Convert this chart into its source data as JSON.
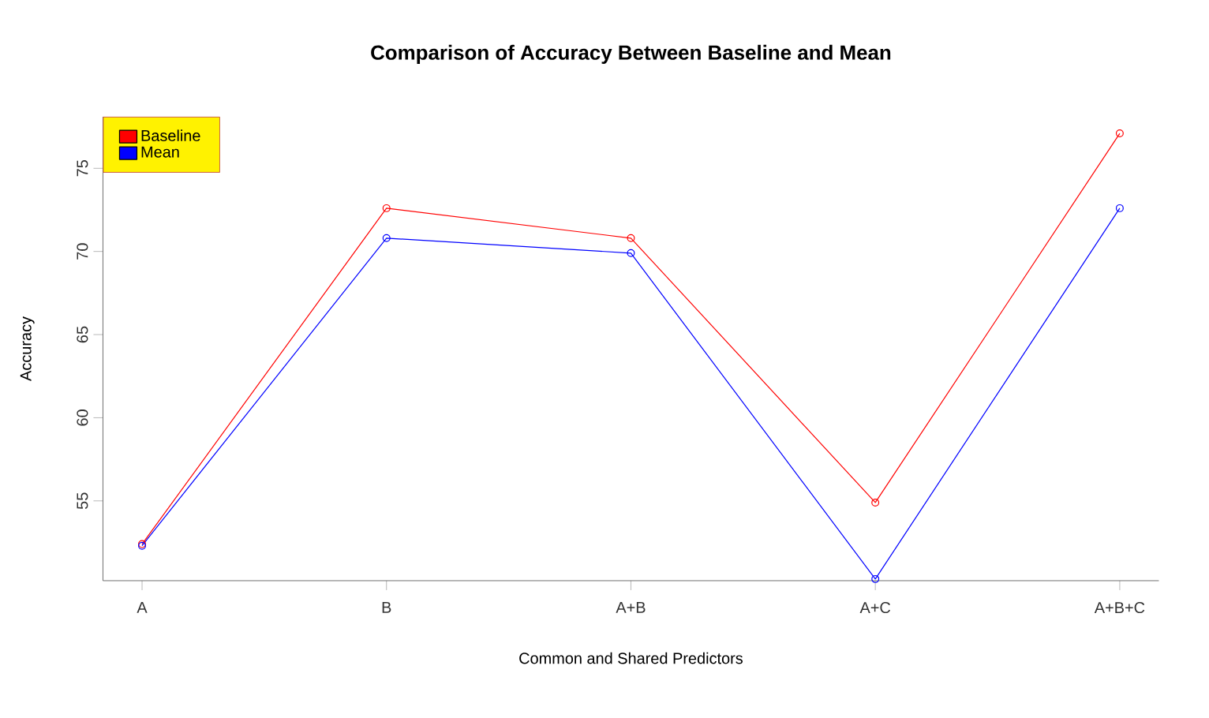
{
  "chart_data": {
    "type": "line",
    "title": "Comparison of Accuracy Between Baseline and Mean",
    "xlabel": "Common and Shared Predictors",
    "ylabel": "Accuracy",
    "categories": [
      "A",
      "B",
      "A+B",
      "A+C",
      "A+B+C"
    ],
    "series": [
      {
        "name": "Baseline",
        "color": "#ff0000",
        "values": [
          52.4,
          72.6,
          70.8,
          54.9,
          77.1
        ]
      },
      {
        "name": "Mean",
        "color": "#0000ff",
        "values": [
          52.3,
          70.8,
          69.9,
          50.3,
          72.6
        ]
      }
    ],
    "ylim": [
      50.2,
      78.1
    ],
    "yticks": [
      55,
      60,
      65,
      70,
      75
    ],
    "legend": "top left",
    "marker": "circle",
    "line_style": "solid"
  }
}
